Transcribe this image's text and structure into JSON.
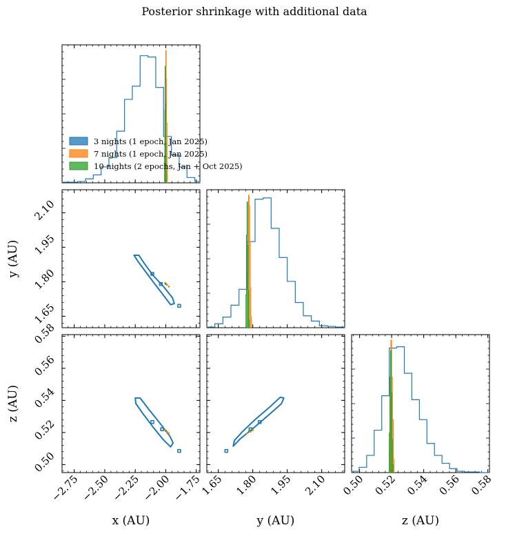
{
  "figure": {
    "title": "Posterior shrinkage with additional data"
  },
  "colors": {
    "n3": "#1f77b4",
    "n7": "#ff7f0e",
    "n10": "#2ca02c"
  },
  "chart_data": {
    "type": "corner",
    "parameters": [
      {
        "key": "x",
        "label": "x (AU)",
        "range": [
          -2.85,
          -1.72
        ],
        "ticks": [
          -2.75,
          -2.5,
          -2.25,
          -2.0,
          -1.75
        ],
        "tick_labels": [
          "−2.75",
          "−2.50",
          "−2.25",
          "−2.00",
          "−1.75"
        ]
      },
      {
        "key": "y",
        "label": "y (AU)",
        "range": [
          1.6,
          2.2
        ],
        "ticks": [
          1.65,
          1.8,
          1.95,
          2.1
        ],
        "tick_labels": [
          "1.65",
          "1.80",
          "1.95",
          "2.10"
        ]
      },
      {
        "key": "z",
        "label": "z (AU)",
        "range": [
          0.495,
          0.581
        ],
        "ticks": [
          0.5,
          0.52,
          0.54,
          0.56,
          0.58
        ],
        "tick_labels": [
          "0.50",
          "0.52",
          "0.54",
          "0.56",
          "0.58"
        ]
      }
    ],
    "legend": {
      "placement": "lower-left of top-left panel",
      "entries": [
        {
          "series": "n3",
          "label": "3 nights (1 epoch, Jan 2025)"
        },
        {
          "series": "n7",
          "label": "7 nights (1 epoch, Jan 2025)"
        },
        {
          "series": "n10",
          "label": "10 nights (2 epochs, Jan + Oct 2025)"
        }
      ]
    },
    "series": [
      {
        "id": "n3",
        "name": "3 nights (1 epoch, Jan 2025)",
        "hist": {
          "x": {
            "edges": [
              -2.85,
              -2.786,
              -2.722,
              -2.658,
              -2.594,
              -2.53,
              -2.466,
              -2.402,
              -2.338,
              -2.274,
              -2.21,
              -2.146,
              -2.082,
              -2.018,
              -1.954,
              -1.89,
              -1.826,
              -1.762,
              -1.72
            ],
            "counts": [
              0.005,
              0.005,
              0.01,
              0.03,
              0.06,
              0.12,
              0.19,
              0.39,
              0.63,
              0.73,
              0.96,
              0.95,
              0.72,
              0.35,
              0.21,
              0.12,
              0.04,
              0.01
            ]
          },
          "y": {
            "edges": [
              1.6,
              1.635,
              1.67,
              1.705,
              1.74,
              1.775,
              1.81,
              1.845,
              1.88,
              1.915,
              1.95,
              1.985,
              2.02,
              2.055,
              2.09,
              2.125,
              2.16,
              2.2
            ],
            "counts": [
              0.005,
              0.03,
              0.08,
              0.17,
              0.29,
              0.65,
              0.97,
              0.98,
              0.75,
              0.53,
              0.35,
              0.19,
              0.09,
              0.05,
              0.015,
              0.01,
              0.005
            ]
          },
          "z": {
            "edges": [
              0.495,
              0.4997,
              0.5044,
              0.5091,
              0.5138,
              0.5185,
              0.5232,
              0.5279,
              0.5326,
              0.5373,
              0.542,
              0.5467,
              0.5514,
              0.5561,
              0.5608,
              0.5655,
              0.5702,
              0.5749,
              0.581
            ],
            "counts": [
              0.01,
              0.04,
              0.13,
              0.32,
              0.58,
              0.94,
              0.95,
              0.75,
              0.55,
              0.4,
              0.22,
              0.13,
              0.07,
              0.03,
              0.01,
              0.005,
              0.005,
              0.0
            ]
          }
        },
        "contours": {
          "xy": [
            [
              -2.26,
              1.915
            ],
            [
              -2.22,
              1.915
            ],
            [
              -2.17,
              1.875
            ],
            [
              -2.1,
              1.825
            ],
            [
              -2.02,
              1.78
            ],
            [
              -1.945,
              1.73
            ],
            [
              -1.93,
              1.705
            ],
            [
              -1.96,
              1.7
            ],
            [
              -2.01,
              1.735
            ],
            [
              -2.09,
              1.79
            ],
            [
              -2.16,
              1.84
            ],
            [
              -2.23,
              1.89
            ],
            [
              -2.26,
              1.915
            ]
          ],
          "xy_islands": [
            [
              -2.11,
              1.834
            ],
            [
              -2.04,
              1.79
            ],
            [
              -1.89,
              1.695
            ]
          ],
          "xz": [
            [
              -2.25,
              0.5415
            ],
            [
              -2.21,
              0.5415
            ],
            [
              -2.14,
              0.5345
            ],
            [
              -2.06,
              0.527
            ],
            [
              -1.965,
              0.5175
            ],
            [
              -1.94,
              0.5135
            ],
            [
              -1.96,
              0.511
            ],
            [
              -2.02,
              0.5155
            ],
            [
              -2.1,
              0.523
            ],
            [
              -2.18,
              0.531
            ],
            [
              -2.245,
              0.538
            ],
            [
              -2.25,
              0.5415
            ]
          ],
          "xz_islands": [
            [
              -2.11,
              0.5265
            ],
            [
              -2.03,
              0.522
            ],
            [
              -1.89,
              0.5085
            ]
          ],
          "yz": [
            [
              1.715,
              0.5115
            ],
            [
              1.745,
              0.516
            ],
            [
              1.805,
              0.523
            ],
            [
              1.87,
              0.531
            ],
            [
              1.925,
              0.538
            ],
            [
              1.935,
              0.5415
            ],
            [
              1.92,
              0.542
            ],
            [
              1.875,
              0.536
            ],
            [
              1.81,
              0.528
            ],
            [
              1.755,
              0.5205
            ],
            [
              1.72,
              0.515
            ],
            [
              1.715,
              0.5115
            ]
          ],
          "yz_islands": [
            [
              1.83,
              0.5265
            ],
            [
              1.79,
              0.522
            ],
            [
              1.685,
              0.5085
            ]
          ]
        }
      },
      {
        "id": "n7",
        "name": "7 nights (1 epoch, Jan 2025)",
        "hist": {
          "x": {
            "edges": [
              -2.007,
              -2.0035,
              -2.0,
              -1.9965,
              -1.993,
              -1.9895,
              -1.986
            ],
            "counts": [
              0.3,
              0.85,
              1.0,
              0.78,
              0.45,
              0.1
            ]
          },
          "y": {
            "edges": [
              1.779,
              1.7815,
              1.784,
              1.7865,
              1.789,
              1.7915,
              1.794
            ],
            "counts": [
              0.4,
              1.0,
              0.92,
              0.65,
              0.3,
              0.08
            ]
          },
          "z": {
            "edges": [
              0.5185,
              0.519,
              0.5195,
              0.52,
              0.5205,
              0.521,
              0.5215
            ],
            "counts": [
              0.15,
              0.55,
              1.0,
              0.72,
              0.4,
              0.1
            ]
          }
        },
        "points": {
          "xy": [
            [
              -2.005,
              1.795
            ],
            [
              -1.99,
              1.787
            ],
            [
              -1.975,
              1.779
            ]
          ],
          "xz": [
            [
              -2.005,
              0.5215
            ],
            [
              -1.99,
              0.5205
            ],
            [
              -1.975,
              0.5195
            ]
          ],
          "yz": [
            [
              1.775,
              0.5195
            ],
            [
              1.79,
              0.5205
            ],
            [
              1.8,
              0.5215
            ]
          ]
        }
      },
      {
        "id": "n10",
        "name": "10 nights (2 epochs, Jan + Oct 2025)",
        "hist": {
          "x": {
            "edges": [
              -2.01,
              -2.0075,
              -2.005,
              -2.0025,
              -2.0,
              -1.9975,
              -1.995
            ],
            "counts": [
              0.2,
              0.55,
              0.88,
              0.6,
              0.3,
              0.08
            ]
          },
          "y": {
            "edges": [
              1.77,
              1.7725,
              1.775,
              1.7775,
              1.78,
              1.7825,
              1.785
            ],
            "counts": [
              0.25,
              0.7,
              0.95,
              0.62,
              0.28,
              0.06
            ]
          },
          "z": {
            "edges": [
              0.5185,
              0.5189,
              0.5193,
              0.5197,
              0.5201,
              0.5205,
              0.5209
            ],
            "counts": [
              0.3,
              0.72,
              0.92,
              0.6,
              0.25,
              0.06
            ]
          }
        },
        "points": {
          "xy": [
            [
              -2.0,
              1.79
            ]
          ],
          "xz": [
            [
              -2.0,
              0.521
            ]
          ],
          "yz": [
            [
              1.785,
              0.521
            ]
          ]
        }
      }
    ]
  }
}
